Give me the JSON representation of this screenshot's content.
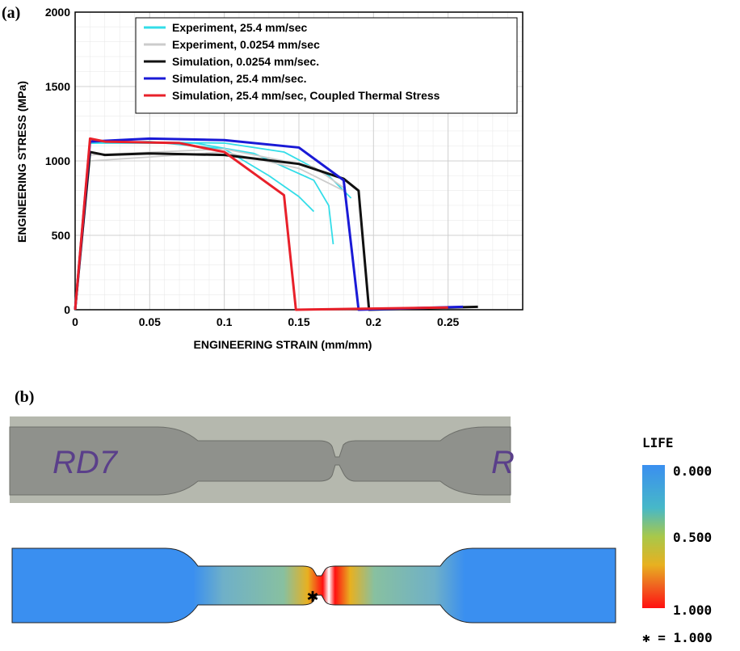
{
  "chart_data": {
    "type": "line",
    "panel_label": "(a)",
    "xlabel": "ENGINEERING STRAIN  (mm/mm)",
    "ylabel": "ENGINEERING STRESS  (MPa)",
    "xlim": [
      0,
      0.3
    ],
    "xticks": [
      0,
      0.05,
      0.1,
      0.15,
      0.2,
      0.25
    ],
    "ylim": [
      0,
      2000
    ],
    "yticks": [
      0,
      500,
      1000,
      1500,
      2000
    ],
    "grid": true,
    "legend": "top-right",
    "series": [
      {
        "name": "Experiment, 25.4 mm/sec",
        "color": "#33dde8",
        "curves": [
          {
            "x": [
              0,
              0.01,
              0.05,
              0.1,
              0.13,
              0.15,
              0.16
            ],
            "values": [
              0,
              1120,
              1130,
              1080,
              900,
              760,
              660
            ]
          },
          {
            "x": [
              0,
              0.01,
              0.08,
              0.12,
              0.16,
              0.17,
              0.173
            ],
            "values": [
              0,
              1120,
              1120,
              1050,
              870,
              700,
              440
            ]
          },
          {
            "x": [
              0,
              0.01,
              0.1,
              0.14,
              0.17,
              0.185
            ],
            "values": [
              0,
              1130,
              1120,
              1060,
              900,
              750
            ]
          }
        ]
      },
      {
        "name": "Experiment, 0.0254 mm/sec",
        "color": "#cccccc",
        "curves": [
          {
            "x": [
              0,
              0.01,
              0.1,
              0.15,
              0.18
            ],
            "values": [
              0,
              1000,
              1060,
              950,
              800
            ]
          },
          {
            "x": [
              0,
              0.01,
              0.1,
              0.16,
              0.18
            ],
            "values": [
              0,
              1040,
              1080,
              960,
              820
            ]
          }
        ]
      },
      {
        "name": "Simulation, 0.0254 mm/sec.",
        "color": "#111111",
        "curves": [
          {
            "x": [
              0,
              0.01,
              0.02,
              0.05,
              0.1,
              0.15,
              0.18,
              0.19,
              0.197,
              0.27
            ],
            "values": [
              0,
              1060,
              1040,
              1050,
              1040,
              980,
              880,
              800,
              0,
              20
            ]
          }
        ]
      },
      {
        "name": "Simulation, 25.4 mm/sec.",
        "color": "#1a1ad6",
        "curves": [
          {
            "x": [
              0,
              0.01,
              0.05,
              0.1,
              0.15,
              0.18,
              0.19,
              0.26
            ],
            "values": [
              0,
              1130,
              1150,
              1140,
              1090,
              870,
              0,
              20
            ]
          }
        ]
      },
      {
        "name": "Simulation, 25.4 mm/sec, Coupled Thermal Stress",
        "color": "#e8202a",
        "curves": [
          {
            "x": [
              0,
              0.01,
              0.02,
              0.07,
              0.1,
              0.14,
              0.148,
              0.25
            ],
            "values": [
              0,
              1150,
              1130,
              1120,
              1060,
              770,
              0,
              15
            ]
          }
        ]
      }
    ]
  },
  "figure_b": {
    "panel_label": "(b)",
    "photo_text": [
      "RD7",
      "R"
    ],
    "legend_title": "LIFE",
    "legend_labels": [
      "0.000",
      "0.500",
      "1.000"
    ],
    "marker_note": "✱ = 1.000"
  }
}
